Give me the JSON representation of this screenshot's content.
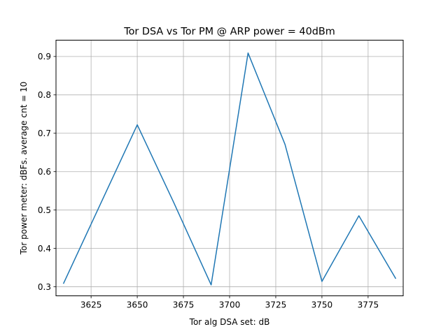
{
  "chart_data": {
    "type": "line",
    "title": "Tor DSA vs Tor PM @ ARP power = 40dBm",
    "xlabel": "Tor alg DSA set: dB",
    "ylabel": "Tor power meter: dBFs. average cnt = 10",
    "x_ticks": [
      "3625",
      "3650",
      "3675",
      "3700",
      "3725",
      "3750",
      "3775"
    ],
    "y_ticks": [
      "0.3",
      "0.4",
      "0.5",
      "0.6",
      "0.7",
      "0.8",
      "0.9"
    ],
    "xlim": [
      3606,
      3794
    ],
    "ylim": [
      0.2765,
      0.9425
    ],
    "grid": true,
    "series": [
      {
        "color": "#1f77b4",
        "x": [
          3610,
          3630,
          3650,
          3670,
          3690,
          3710,
          3730,
          3750,
          3770,
          3790
        ],
        "y": [
          0.308,
          0.515,
          0.722,
          0.517,
          0.305,
          0.909,
          0.671,
          0.314,
          0.485,
          0.321
        ]
      }
    ]
  }
}
